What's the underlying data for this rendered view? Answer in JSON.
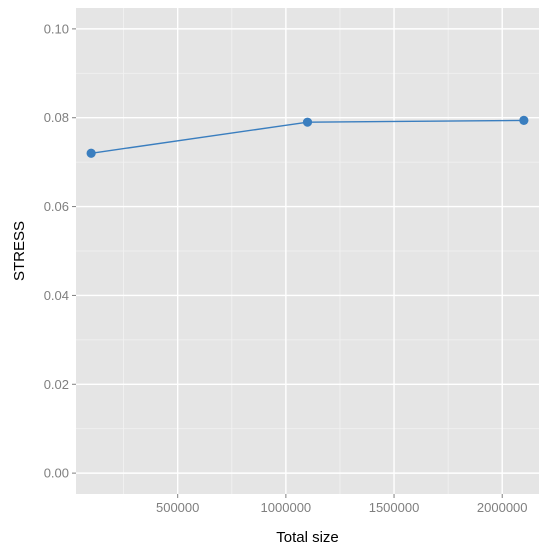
{
  "chart_data": {
    "type": "line",
    "title": "",
    "xlabel": "Total size",
    "ylabel": "STRESS",
    "x_ticks": [
      500000,
      1000000,
      1500000,
      2000000
    ],
    "x_tick_labels": [
      "500000",
      "1000000",
      "1500000",
      "2000000"
    ],
    "y_ticks": [
      0.0,
      0.02,
      0.04,
      0.06,
      0.08,
      0.1
    ],
    "y_tick_labels": [
      "0.00",
      "0.02",
      "0.04",
      "0.06",
      "0.08",
      "0.10"
    ],
    "xlim": [
      30000,
      2170000
    ],
    "ylim": [
      -0.0047,
      0.1047
    ],
    "grid": true,
    "series": [
      {
        "x": [
          100000,
          1100000,
          2100000
        ],
        "y": [
          0.072,
          0.079,
          0.0794
        ],
        "color": "#3a7ebf"
      }
    ]
  },
  "colors": {
    "panel_background": "#e5e5e5",
    "grid_major": "#ffffff",
    "grid_minor": "#f2f2f2",
    "tick_text": "#7f7f7f"
  }
}
